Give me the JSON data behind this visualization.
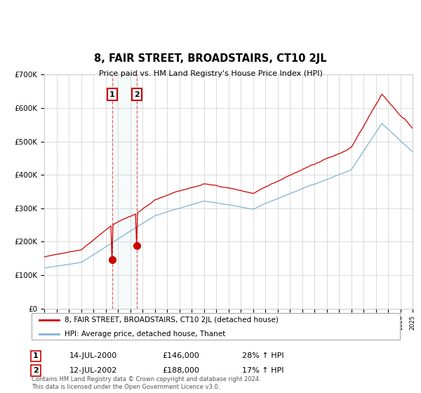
{
  "title": "8, FAIR STREET, BROADSTAIRS, CT10 2JL",
  "subtitle": "Price paid vs. HM Land Registry's House Price Index (HPI)",
  "ylim": [
    0,
    700000
  ],
  "yticks": [
    0,
    100000,
    200000,
    300000,
    400000,
    500000,
    600000,
    700000
  ],
  "ytick_labels": [
    "£0",
    "£100K",
    "£200K",
    "£300K",
    "£400K",
    "£500K",
    "£600K",
    "£700K"
  ],
  "hpi_color": "#7fb3d3",
  "price_color": "#cc0000",
  "vline_color": "#dd4444",
  "transaction1": {
    "date": "14-JUL-2000",
    "price": 146000,
    "pct": "28%",
    "label": "1",
    "year": 2000.54
  },
  "transaction2": {
    "date": "12-JUL-2002",
    "price": 188000,
    "pct": "17%",
    "label": "2",
    "year": 2002.54
  },
  "legend_label_price": "8, FAIR STREET, BROADSTAIRS, CT10 2JL (detached house)",
  "legend_label_hpi": "HPI: Average price, detached house, Thanet",
  "footnote": "Contains HM Land Registry data © Crown copyright and database right 2024.\nThis data is licensed under the Open Government Licence v3.0.",
  "background_color": "#ffffff",
  "grid_color": "#cccccc",
  "xmin": 1995,
  "xmax": 2025
}
